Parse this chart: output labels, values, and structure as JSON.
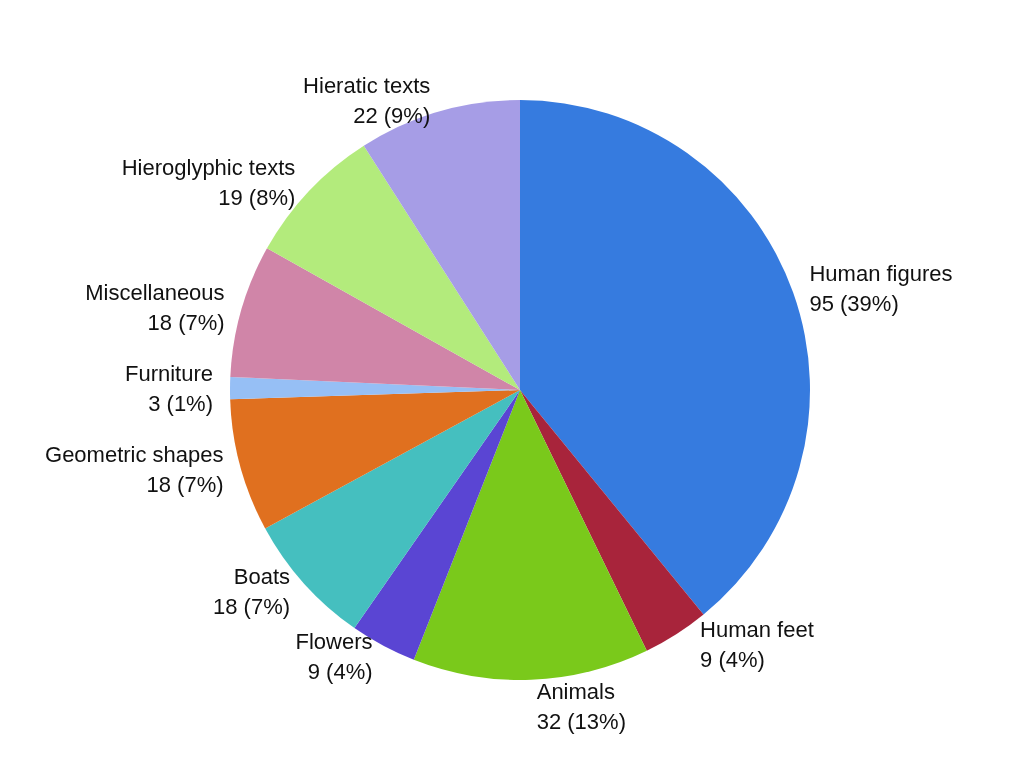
{
  "chart_data": {
    "type": "pie",
    "categories": [
      "Human figures",
      "Human feet",
      "Animals",
      "Flowers",
      "Boats",
      "Geometric shapes",
      "Furniture",
      "Miscellaneous",
      "Hieroglyphic texts",
      "Hieratic texts"
    ],
    "values": [
      95,
      9,
      32,
      9,
      18,
      18,
      3,
      18,
      19,
      22
    ],
    "value_labels": [
      "95 (39%)",
      "9 (4%)",
      "32 (13%)",
      "9 (4%)",
      "18 (7%)",
      "18 (7%)",
      "3 (1%)",
      "18 (7%)",
      "19 (8%)",
      "22 (9%)"
    ],
    "colors": [
      "#367bdf",
      "#a8243b",
      "#7ac91b",
      "#5a45d3",
      "#45bfbf",
      "#e0701f",
      "#96bff5",
      "#d085a8",
      "#b3eb7c",
      "#a69de6"
    ],
    "legend": false
  }
}
